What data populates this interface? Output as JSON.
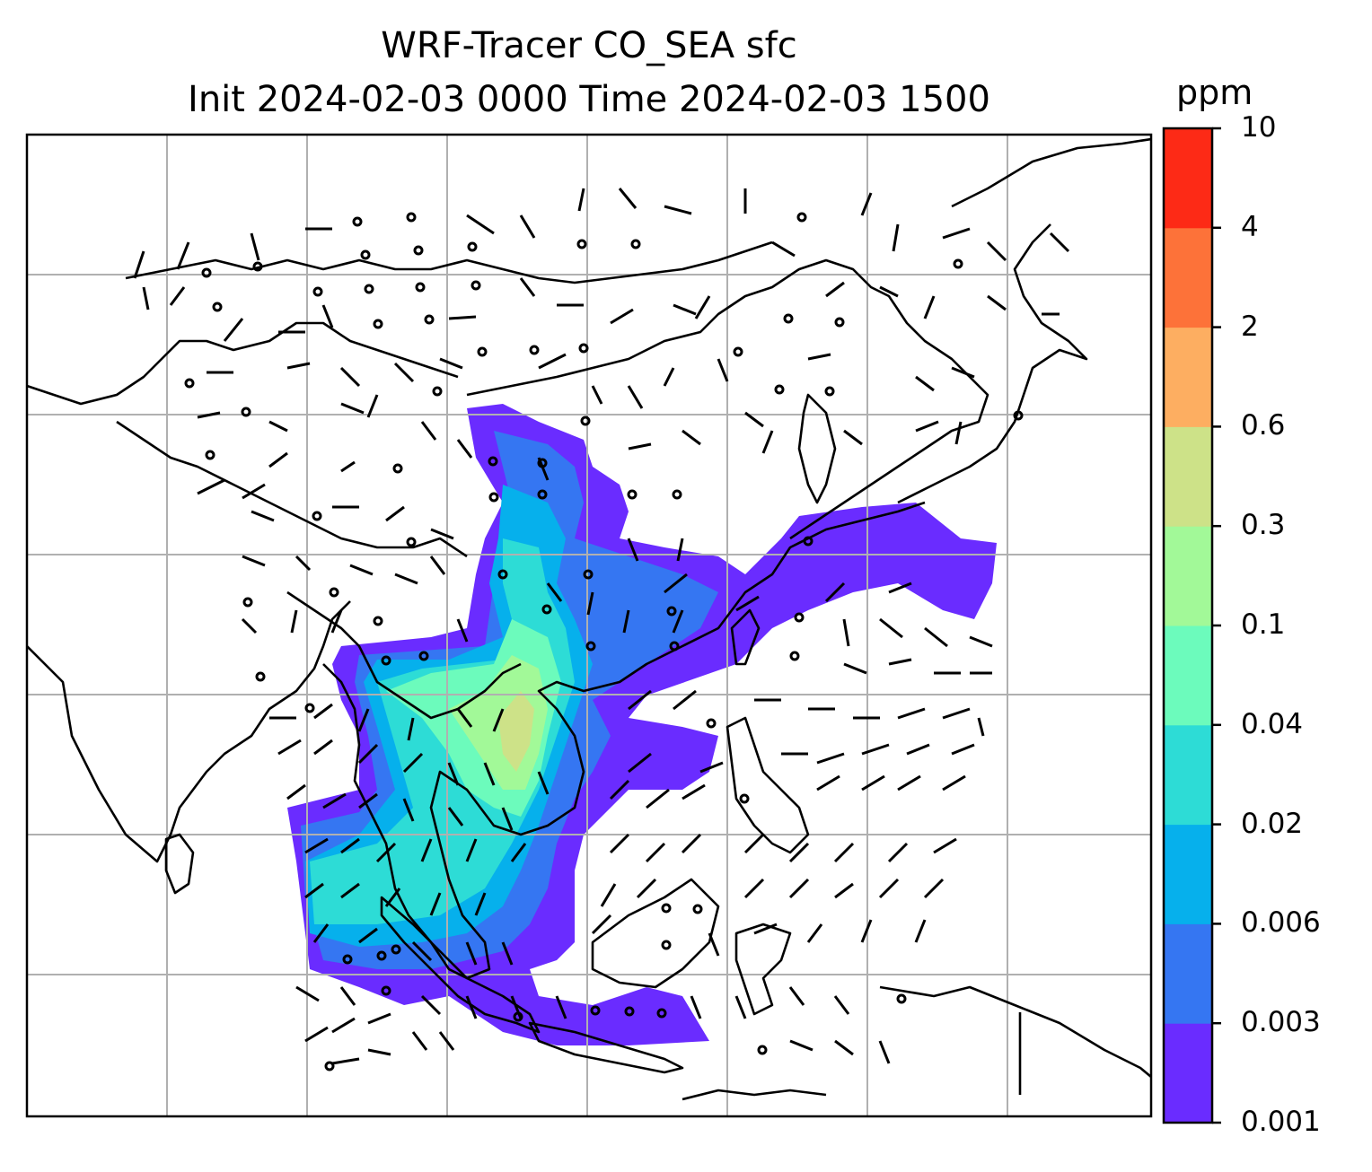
{
  "title_line1": "WRF-Tracer CO_SEA sfc",
  "title_line2": "Init 2024-02-03 0000 Time 2024-02-03 1500",
  "colorbar": {
    "unit": "ppm",
    "levels": [
      "0.001",
      "0.003",
      "0.006",
      "0.02",
      "0.04",
      "0.1",
      "0.3",
      "0.6",
      "2",
      "4",
      "10"
    ],
    "colors": [
      "#6a2cff",
      "#3576f2",
      "#06b0ec",
      "#2ddcd6",
      "#6cfbbc",
      "#a2f998",
      "#cde288",
      "#fdae61",
      "#fd7239",
      "#fd2a16"
    ]
  },
  "map": {
    "coastline_color": "#000000",
    "gridline_color": "#b0b0b0",
    "wind_barb_color": "#000000"
  }
}
